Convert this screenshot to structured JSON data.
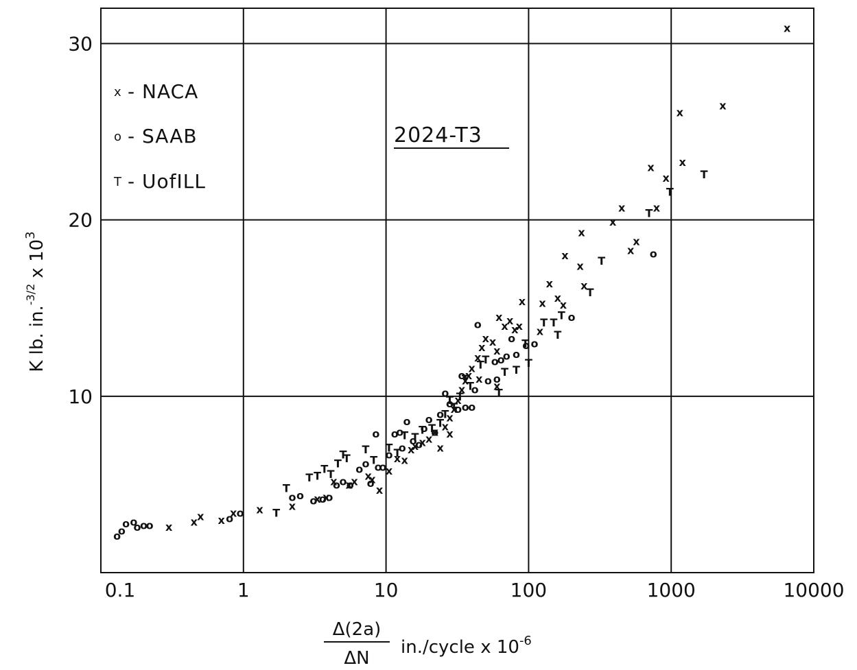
{
  "chart_data": {
    "type": "scatter",
    "title": "",
    "annotation": "2024-T3",
    "x_scale": "log",
    "xlim": [
      0.1,
      10000
    ],
    "ylim": [
      0,
      32
    ],
    "x_ticks": [
      0.1,
      1,
      10,
      100,
      1000,
      10000
    ],
    "x_tick_labels": [
      "0.1",
      "1",
      "10",
      "100",
      "1000",
      "10000"
    ],
    "y_ticks": [
      10,
      20,
      30
    ],
    "y_tick_labels": [
      "10",
      "20",
      "30"
    ],
    "xlabel": {
      "numerator": "Δ(2a)",
      "denominator": "ΔN",
      "units": "in./cycle x 10",
      "exponent": "-6"
    },
    "ylabel": {
      "text": "K lb. in.",
      "exponent": "-3/2",
      "multiplier": "x 10",
      "multiplier_exponent": "3"
    },
    "grid": true,
    "legend_position": "top-left",
    "series": [
      {
        "name": "NACA",
        "symbol": "x",
        "points": [
          [
            0.3,
            2.6
          ],
          [
            0.45,
            2.9
          ],
          [
            0.5,
            3.2
          ],
          [
            0.7,
            3.0
          ],
          [
            0.85,
            3.4
          ],
          [
            1.3,
            3.6
          ],
          [
            2.2,
            3.8
          ],
          [
            3.3,
            4.2
          ],
          [
            3.8,
            4.3
          ],
          [
            4.3,
            5.2
          ],
          [
            5.5,
            5.0
          ],
          [
            6.0,
            5.2
          ],
          [
            7.5,
            5.5
          ],
          [
            8.0,
            5.3
          ],
          [
            9.0,
            4.7
          ],
          [
            10.5,
            5.8
          ],
          [
            12.0,
            6.5
          ],
          [
            13.5,
            6.4
          ],
          [
            15.0,
            7.0
          ],
          [
            16.0,
            7.2
          ],
          [
            18.0,
            7.4
          ],
          [
            20.0,
            7.6
          ],
          [
            22.0,
            8.0
          ],
          [
            24.0,
            7.1
          ],
          [
            26.0,
            8.3
          ],
          [
            28.0,
            8.8
          ],
          [
            30.0,
            9.3
          ],
          [
            32.0,
            9.8
          ],
          [
            34.0,
            10.4
          ],
          [
            36.0,
            10.9
          ],
          [
            38.0,
            11.2
          ],
          [
            40.0,
            11.6
          ],
          [
            44.0,
            12.2
          ],
          [
            47.0,
            12.8
          ],
          [
            50.0,
            13.3
          ],
          [
            56.0,
            13.1
          ],
          [
            60.0,
            12.6
          ],
          [
            62.0,
            14.5
          ],
          [
            68.0,
            14.0
          ],
          [
            74.0,
            14.3
          ],
          [
            80.0,
            13.8
          ],
          [
            86.0,
            14.0
          ],
          [
            90.0,
            15.4
          ],
          [
            120.0,
            13.7
          ],
          [
            125.0,
            15.3
          ],
          [
            140.0,
            16.4
          ],
          [
            160.0,
            15.6
          ],
          [
            175.0,
            15.2
          ],
          [
            180.0,
            18.0
          ],
          [
            230.0,
            17.4
          ],
          [
            235.0,
            19.3
          ],
          [
            245.0,
            16.3
          ],
          [
            390.0,
            19.9
          ],
          [
            450.0,
            20.7
          ],
          [
            520.0,
            18.3
          ],
          [
            570.0,
            18.8
          ],
          [
            720.0,
            23.0
          ],
          [
            790.0,
            20.7
          ],
          [
            920.0,
            22.4
          ],
          [
            1150.0,
            26.1
          ],
          [
            1200.0,
            23.3
          ],
          [
            2300.0,
            26.5
          ],
          [
            6500.0,
            30.9
          ],
          [
            60.0,
            10.6
          ],
          [
            28.0,
            7.9
          ],
          [
            45.0,
            11.0
          ]
        ]
      },
      {
        "name": "SAAB",
        "symbol": "o",
        "points": [
          [
            0.13,
            2.1
          ],
          [
            0.14,
            2.4
          ],
          [
            0.15,
            2.8
          ],
          [
            0.17,
            2.9
          ],
          [
            0.18,
            2.6
          ],
          [
            0.2,
            2.7
          ],
          [
            0.22,
            2.7
          ],
          [
            0.8,
            3.1
          ],
          [
            0.95,
            3.4
          ],
          [
            2.2,
            4.3
          ],
          [
            2.5,
            4.4
          ],
          [
            3.1,
            4.1
          ],
          [
            3.6,
            4.2
          ],
          [
            4.0,
            4.3
          ],
          [
            4.5,
            5.0
          ],
          [
            5.0,
            5.2
          ],
          [
            5.6,
            5.0
          ],
          [
            6.5,
            5.9
          ],
          [
            7.2,
            6.2
          ],
          [
            7.8,
            5.1
          ],
          [
            8.5,
            7.9
          ],
          [
            8.8,
            6.0
          ],
          [
            9.5,
            6.0
          ],
          [
            10.5,
            6.7
          ],
          [
            11.5,
            7.9
          ],
          [
            12.5,
            8.0
          ],
          [
            13.0,
            7.1
          ],
          [
            14.0,
            8.6
          ],
          [
            15.5,
            7.5
          ],
          [
            17.0,
            7.3
          ],
          [
            18.5,
            8.2
          ],
          [
            20.0,
            8.7
          ],
          [
            22.0,
            8.0
          ],
          [
            24.0,
            9.0
          ],
          [
            26.0,
            10.2
          ],
          [
            28.0,
            9.6
          ],
          [
            32.0,
            9.3
          ],
          [
            34.0,
            11.2
          ],
          [
            36.0,
            9.4
          ],
          [
            40.0,
            9.4
          ],
          [
            42.0,
            10.4
          ],
          [
            44.0,
            14.1
          ],
          [
            52.0,
            10.9
          ],
          [
            58.0,
            12.0
          ],
          [
            60.0,
            11.0
          ],
          [
            64.0,
            12.1
          ],
          [
            70.0,
            12.3
          ],
          [
            76.0,
            13.3
          ],
          [
            82.0,
            12.4
          ],
          [
            96.0,
            12.9
          ],
          [
            110.0,
            13.0
          ],
          [
            200.0,
            14.5
          ],
          [
            750.0,
            18.1
          ]
        ]
      },
      {
        "name": "UofILL",
        "symbol": "T",
        "points": [
          [
            1.7,
            3.4
          ],
          [
            2.0,
            4.8
          ],
          [
            2.9,
            5.4
          ],
          [
            3.3,
            5.5
          ],
          [
            3.7,
            5.9
          ],
          [
            4.1,
            5.6
          ],
          [
            4.6,
            6.2
          ],
          [
            5.0,
            6.7
          ],
          [
            5.3,
            6.5
          ],
          [
            7.2,
            7.0
          ],
          [
            8.2,
            6.4
          ],
          [
            10.5,
            7.1
          ],
          [
            12.0,
            6.8
          ],
          [
            13.5,
            7.8
          ],
          [
            16.0,
            7.7
          ],
          [
            18.0,
            8.1
          ],
          [
            21.0,
            8.2
          ],
          [
            24.0,
            8.5
          ],
          [
            26.0,
            9.0
          ],
          [
            28.0,
            9.8
          ],
          [
            30.0,
            9.4
          ],
          [
            33.0,
            10.0
          ],
          [
            36.0,
            11.0
          ],
          [
            39.0,
            10.6
          ],
          [
            46.0,
            11.8
          ],
          [
            50.0,
            12.1
          ],
          [
            62.0,
            10.2
          ],
          [
            68.0,
            11.4
          ],
          [
            82.0,
            11.5
          ],
          [
            95.0,
            13.0
          ],
          [
            100.0,
            11.9
          ],
          [
            128.0,
            14.2
          ],
          [
            150.0,
            14.2
          ],
          [
            160.0,
            13.5
          ],
          [
            170.0,
            14.6
          ],
          [
            270.0,
            15.9
          ],
          [
            325.0,
            17.7
          ],
          [
            700.0,
            20.4
          ],
          [
            980.0,
            21.6
          ],
          [
            1700.0,
            22.6
          ]
        ]
      }
    ]
  },
  "legend": [
    {
      "symbol": "x",
      "text": "- NACA"
    },
    {
      "symbol": "o",
      "text": "- SAAB"
    },
    {
      "symbol": "T",
      "text": "- UofILL"
    }
  ]
}
